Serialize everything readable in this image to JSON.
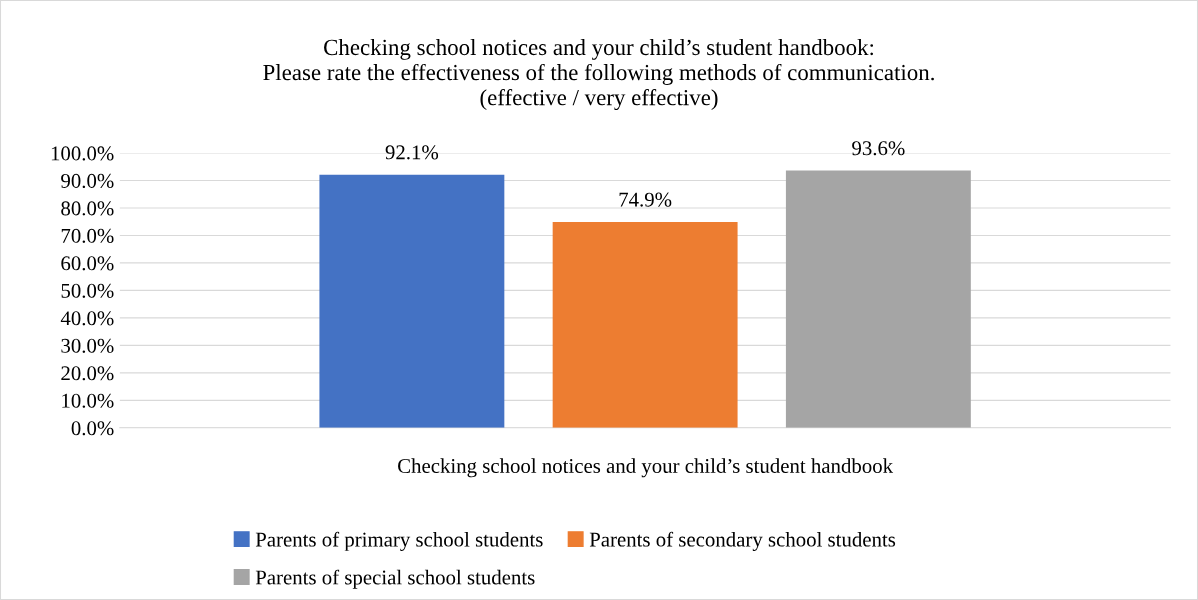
{
  "chart_data": {
    "type": "bar",
    "title": "Checking school notices and your child’s student handbook:\nPlease rate the effectiveness of the following methods of communication.\n(effective / very effective)",
    "categories": [
      "Checking school notices and your child’s student handbook"
    ],
    "series": [
      {
        "name": "Parents of primary school students",
        "color": "#4472c4",
        "values": [
          92.1
        ],
        "value_labels": [
          "92.1%"
        ]
      },
      {
        "name": "Parents of secondary school students",
        "color": "#ed7d31",
        "values": [
          74.9
        ],
        "value_labels": [
          "74.9%"
        ]
      },
      {
        "name": "Parents of special school students",
        "color": "#a5a5a5",
        "values": [
          93.6
        ],
        "value_labels": [
          "93.6%"
        ]
      }
    ],
    "ylim": [
      0,
      100
    ],
    "yticks": [
      {
        "value": 0,
        "label": "0.0%"
      },
      {
        "value": 10,
        "label": "10.0%"
      },
      {
        "value": 20,
        "label": "20.0%"
      },
      {
        "value": 30,
        "label": "30.0%"
      },
      {
        "value": 40,
        "label": "40.0%"
      },
      {
        "value": 50,
        "label": "50.0%"
      },
      {
        "value": 60,
        "label": "60.0%"
      },
      {
        "value": 70,
        "label": "70.0%"
      },
      {
        "value": 80,
        "label": "80.0%"
      },
      {
        "value": 90,
        "label": "90.0%"
      },
      {
        "value": 100,
        "label": "100.0%"
      }
    ],
    "grid": "y",
    "legend": "bottom"
  }
}
